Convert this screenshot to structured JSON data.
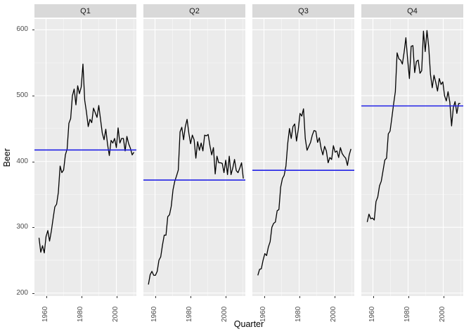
{
  "chart_data": {
    "type": "line",
    "title": "",
    "xlabel": "Quarter",
    "ylabel": "Beer",
    "facet_variable": "Quarter",
    "start_year": 1956,
    "xlim": [
      1953.4,
      2011.4
    ],
    "ylim": [
      195.5,
      616.5
    ],
    "x_major_ticks": [
      1960,
      1980,
      2000
    ],
    "x_minor_gridlines": [
      1970,
      1990,
      2010
    ],
    "y_major_ticks": [
      200,
      300,
      400,
      500,
      600
    ],
    "y_minor_gridlines": [
      250,
      350,
      450,
      550
    ],
    "grid": "on",
    "legend": "none",
    "colors": {
      "panel_bg": "#EBEBEB",
      "strip_bg": "#D9D9D9",
      "grid_major": "#FFFFFF",
      "grid_minor": "#FFFFFF",
      "series_line": "#000000",
      "mean_line": "#2222E6",
      "tick_text": "#4D4D4D",
      "strip_text": "#1A1A1A"
    },
    "facets": [
      {
        "label": "Q1",
        "x_offset": 0.0,
        "mean": 417.4,
        "values": [
          284,
          262,
          272,
          261,
          286,
          295,
          279,
          294,
          313,
          331,
          335,
          353,
          393,
          383,
          387,
          410,
          419,
          458,
          465,
          500,
          510,
          486,
          515,
          503,
          513,
          548,
          493,
          475,
          453,
          464,
          459,
          481,
          474,
          467,
          485,
          464,
          443,
          433,
          449,
          426,
          409,
          432,
          428,
          435,
          421,
          451,
          428,
          435,
          435,
          416,
          438,
          427,
          420,
          410,
          414
        ]
      },
      {
        "label": "Q2",
        "x_offset": 0.25,
        "mean": 371.7,
        "values": [
          213,
          228,
          233,
          227,
          227,
          233,
          250,
          255,
          273,
          288,
          288,
          316,
          319,
          332,
          357,
          370,
          378,
          387,
          445,
          452,
          433,
          453,
          464,
          443,
          427,
          440,
          433,
          405,
          430,
          417,
          428,
          416,
          440,
          439,
          441,
          424,
          410,
          421,
          381,
          408,
          398,
          398,
          397,
          383,
          402,
          380,
          408,
          380,
          390,
          403,
          386,
          383,
          390,
          398,
          374
        ]
      },
      {
        "label": "Q3",
        "x_offset": 0.5,
        "mean": 386.6,
        "values": [
          227,
          236,
          237,
          250,
          260,
          257,
          270,
          278,
          300,
          306,
          308,
          325,
          327,
          361,
          374,
          379,
          393,
          427,
          450,
          435,
          453,
          457,
          431,
          448,
          473,
          469,
          480,
          435,
          417,
          423,
          429,
          440,
          447,
          446,
          429,
          436,
          420,
          410,
          423,
          416,
          398,
          406,
          403,
          424,
          414,
          416,
          406,
          421,
          412,
          408,
          405,
          394,
          410,
          419
        ]
      },
      {
        "label": "Q4",
        "x_offset": 0.75,
        "mean": 484.4,
        "values": [
          308,
          320,
          313,
          314,
          311,
          339,
          346,
          363,
          370,
          386,
          402,
          405,
          442,
          446,
          466,
          487,
          506,
          565,
          556,
          554,
          548,
          566,
          588,
          555,
          526,
          575,
          576,
          535,
          552,
          554,
          534,
          538,
          598,
          567,
          599,
          574,
          532,
          512,
          531,
          520,
          507,
          526,
          517,
          521,
          500,
          492,
          506,
          490,
          454,
          482,
          491,
          473,
          488,
          488
        ]
      }
    ]
  }
}
